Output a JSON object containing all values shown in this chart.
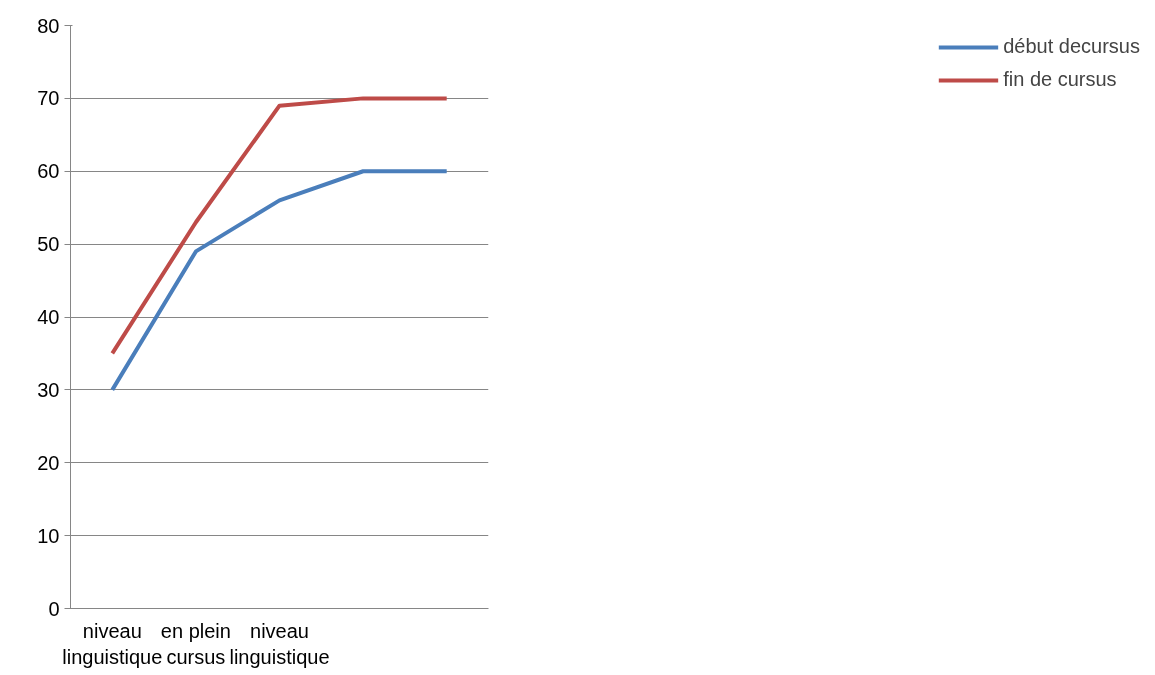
{
  "chart_data": {
    "type": "line",
    "categories": [
      "niveau linguistique",
      "en plein cursus",
      "niveau linguistique",
      null,
      null
    ],
    "series": [
      {
        "name": "début decursus",
        "color": "#4a7ebb",
        "values": [
          30,
          49,
          56,
          60,
          60
        ]
      },
      {
        "name": "fin de cursus",
        "color": "#be4b48",
        "values": [
          35,
          53,
          69,
          70,
          70
        ]
      }
    ],
    "ylim": [
      0,
      80
    ],
    "yticks": [
      0,
      10,
      20,
      30,
      40,
      50,
      60,
      70,
      80
    ],
    "grid": "y",
    "legend": "right",
    "marker": "none",
    "line_style": "solid"
  }
}
